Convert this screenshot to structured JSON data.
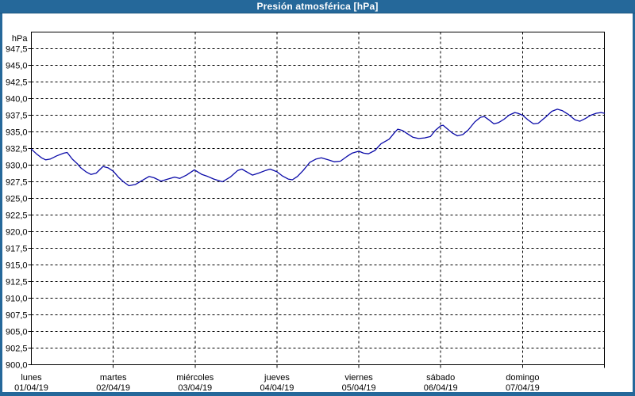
{
  "window": {
    "title": "Presión atmosférica [hPa]"
  },
  "colors": {
    "titlebar": "#25689A",
    "titlebar_separator": "#1B5580",
    "frame": "#25689A",
    "plot_background": "#FFFFFF",
    "grid": "#000000",
    "text": "#000000",
    "title_text": "#FFFFFF",
    "line": "#0A0AA8"
  },
  "chart_data": {
    "type": "line",
    "title": "Presión atmosférica [hPa]",
    "ylabel": "hPa",
    "xlabel": "",
    "grid": "dashed",
    "legend": "none",
    "ylim": [
      900,
      950
    ],
    "ytick_step": 2.5,
    "x_hours_span": 168,
    "yticks": [
      {
        "v": 947.5,
        "label": "947,5"
      },
      {
        "v": 945.0,
        "label": "945,0"
      },
      {
        "v": 942.5,
        "label": "942,5"
      },
      {
        "v": 940.0,
        "label": "940,0"
      },
      {
        "v": 937.5,
        "label": "937,5"
      },
      {
        "v": 935.0,
        "label": "935,0"
      },
      {
        "v": 932.5,
        "label": "932,5"
      },
      {
        "v": 930.0,
        "label": "930,0"
      },
      {
        "v": 927.5,
        "label": "927,5"
      },
      {
        "v": 925.0,
        "label": "925,0"
      },
      {
        "v": 922.5,
        "label": "922,5"
      },
      {
        "v": 920.0,
        "label": "920,0"
      },
      {
        "v": 917.5,
        "label": "917,5"
      },
      {
        "v": 915.0,
        "label": "915,0"
      },
      {
        "v": 912.5,
        "label": "912,5"
      },
      {
        "v": 910.0,
        "label": "910,0"
      },
      {
        "v": 907.5,
        "label": "907,5"
      },
      {
        "v": 905.0,
        "label": "905,0"
      },
      {
        "v": 902.5,
        "label": "902,5"
      },
      {
        "v": 900.0,
        "label": "900,0"
      }
    ],
    "x_days": [
      {
        "name": "lunes",
        "date": "01/04/19"
      },
      {
        "name": "martes",
        "date": "02/04/19"
      },
      {
        "name": "miércoles",
        "date": "03/04/19"
      },
      {
        "name": "jueves",
        "date": "04/04/19"
      },
      {
        "name": "viernes",
        "date": "05/04/19"
      },
      {
        "name": "sábado",
        "date": "06/04/19"
      },
      {
        "name": "domingo",
        "date": "07/04/19"
      }
    ],
    "series": [
      {
        "name": "Presión atmosférica",
        "color": "#0A0AA8",
        "unit": "hPa",
        "points": [
          [
            0.0,
            932.4
          ],
          [
            1.5,
            931.7
          ],
          [
            3.0,
            931.1
          ],
          [
            4.2,
            930.8
          ],
          [
            5.5,
            930.9
          ],
          [
            7.5,
            931.4
          ],
          [
            9.5,
            931.8
          ],
          [
            10.5,
            931.9
          ],
          [
            12.0,
            930.9
          ],
          [
            13.5,
            930.2
          ],
          [
            14.5,
            929.6
          ],
          [
            16.0,
            929.0
          ],
          [
            17.5,
            928.6
          ],
          [
            19.0,
            928.8
          ],
          [
            21.0,
            929.8
          ],
          [
            22.5,
            929.6
          ],
          [
            24.0,
            929.1
          ],
          [
            25.5,
            928.2
          ],
          [
            27.0,
            927.5
          ],
          [
            28.6,
            926.9
          ],
          [
            30.5,
            927.1
          ],
          [
            32.5,
            927.7
          ],
          [
            34.5,
            928.3
          ],
          [
            36.0,
            928.1
          ],
          [
            38.0,
            927.6
          ],
          [
            40.0,
            927.9
          ],
          [
            42.0,
            928.2
          ],
          [
            43.5,
            928.0
          ],
          [
            45.5,
            928.5
          ],
          [
            47.8,
            929.3
          ],
          [
            50.0,
            928.6
          ],
          [
            51.7,
            928.3
          ],
          [
            53.5,
            927.9
          ],
          [
            56.0,
            927.5
          ],
          [
            58.3,
            928.2
          ],
          [
            60.5,
            929.2
          ],
          [
            61.7,
            929.4
          ],
          [
            63.4,
            928.9
          ],
          [
            64.8,
            928.5
          ],
          [
            66.6,
            928.8
          ],
          [
            68.7,
            929.2
          ],
          [
            70.0,
            929.4
          ],
          [
            72.0,
            929.0
          ],
          [
            73.5,
            928.4
          ],
          [
            75.3,
            927.9
          ],
          [
            76.5,
            927.8
          ],
          [
            78.0,
            928.3
          ],
          [
            79.7,
            929.2
          ],
          [
            81.6,
            930.4
          ],
          [
            83.4,
            930.9
          ],
          [
            85.0,
            931.1
          ],
          [
            87.0,
            930.8
          ],
          [
            88.8,
            930.5
          ],
          [
            90.6,
            930.6
          ],
          [
            92.5,
            931.3
          ],
          [
            94.0,
            931.8
          ],
          [
            96.0,
            932.1
          ],
          [
            97.4,
            931.8
          ],
          [
            98.8,
            931.7
          ],
          [
            100.7,
            932.2
          ],
          [
            102.5,
            933.2
          ],
          [
            104.9,
            933.9
          ],
          [
            106.5,
            934.9
          ],
          [
            107.4,
            935.4
          ],
          [
            108.8,
            935.2
          ],
          [
            110.0,
            934.8
          ],
          [
            111.8,
            934.2
          ],
          [
            113.5,
            934.0
          ],
          [
            115.3,
            934.1
          ],
          [
            117.0,
            934.3
          ],
          [
            118.4,
            935.2
          ],
          [
            120.0,
            935.9
          ],
          [
            120.7,
            936.0
          ],
          [
            122.3,
            935.3
          ],
          [
            123.5,
            934.8
          ],
          [
            124.9,
            934.4
          ],
          [
            126.5,
            934.6
          ],
          [
            128.1,
            935.3
          ],
          [
            130.0,
            936.5
          ],
          [
            131.7,
            937.2
          ],
          [
            132.8,
            937.3
          ],
          [
            134.4,
            936.7
          ],
          [
            135.6,
            936.2
          ],
          [
            137.0,
            936.4
          ],
          [
            138.6,
            936.9
          ],
          [
            140.0,
            937.5
          ],
          [
            141.7,
            937.9
          ],
          [
            142.6,
            937.8
          ],
          [
            144.0,
            937.5
          ],
          [
            145.6,
            936.8
          ],
          [
            147.2,
            936.2
          ],
          [
            148.6,
            936.3
          ],
          [
            150.7,
            937.2
          ],
          [
            152.6,
            938.1
          ],
          [
            154.2,
            938.4
          ],
          [
            155.6,
            938.2
          ],
          [
            157.5,
            937.6
          ],
          [
            159.4,
            936.8
          ],
          [
            160.8,
            936.6
          ],
          [
            162.4,
            937.0
          ],
          [
            164.0,
            937.5
          ],
          [
            165.6,
            937.8
          ],
          [
            167.0,
            937.9
          ],
          [
            168.0,
            937.8
          ]
        ]
      }
    ]
  }
}
